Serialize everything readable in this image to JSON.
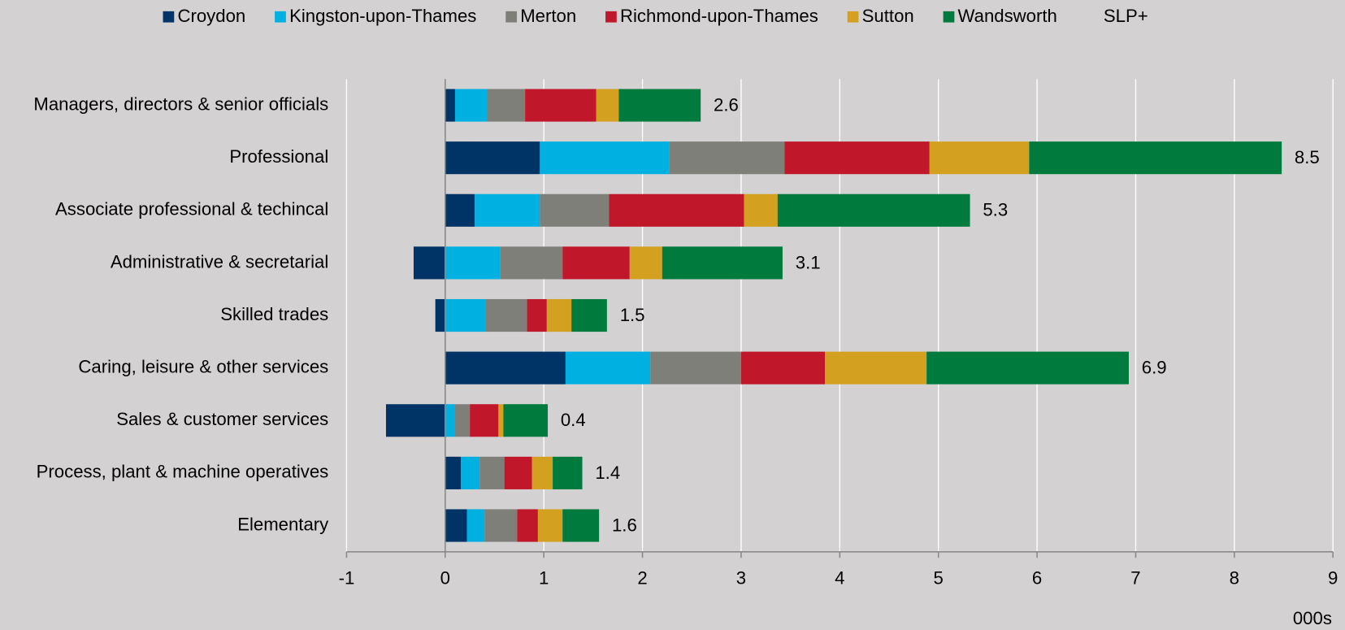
{
  "chart_data": {
    "type": "bar",
    "orientation": "horizontal",
    "stacked": true,
    "categories": [
      "Managers, directors & senior officials",
      "Professional",
      "Associate professional & techincal",
      "Administrative & secretarial",
      "Skilled trades",
      "Caring, leisure & other services",
      "Sales & customer services",
      "Process, plant & machine operatives",
      "Elementary"
    ],
    "series": [
      {
        "name": "Croydon",
        "color": "#003366",
        "values": [
          0.1,
          0.96,
          0.3,
          -0.32,
          -0.1,
          1.22,
          -0.6,
          0.16,
          0.22
        ]
      },
      {
        "name": "Kingston-upon-Thames",
        "color": "#00b0e0",
        "values": [
          0.33,
          1.31,
          0.66,
          0.56,
          0.41,
          0.86,
          0.1,
          0.19,
          0.18
        ]
      },
      {
        "name": "Merton",
        "color": "#7f7f7a",
        "values": [
          0.38,
          1.17,
          0.7,
          0.63,
          0.42,
          0.92,
          0.15,
          0.25,
          0.33
        ]
      },
      {
        "name": "Richmond-upon-Thames",
        "color": "#c0182a",
        "values": [
          0.72,
          1.47,
          1.37,
          0.68,
          0.2,
          0.85,
          0.29,
          0.28,
          0.21
        ]
      },
      {
        "name": "Sutton",
        "color": "#d4a020",
        "values": [
          0.23,
          1.01,
          0.34,
          0.33,
          0.25,
          1.03,
          0.05,
          0.21,
          0.25
        ]
      },
      {
        "name": "Wandsworth",
        "color": "#007a3d",
        "values": [
          0.83,
          2.56,
          1.95,
          1.22,
          0.36,
          2.05,
          0.45,
          0.3,
          0.37
        ]
      },
      {
        "name": "SLP+",
        "values": [
          2.6,
          8.5,
          5.3,
          3.1,
          1.5,
          6.9,
          0.4,
          1.4,
          1.6
        ]
      }
    ],
    "xlabel": "000s",
    "xlim": [
      -1,
      9
    ],
    "xticks": [
      -1,
      0,
      1,
      2,
      3,
      4,
      5,
      6,
      7,
      8,
      9
    ],
    "grid": true,
    "legend": "top"
  }
}
